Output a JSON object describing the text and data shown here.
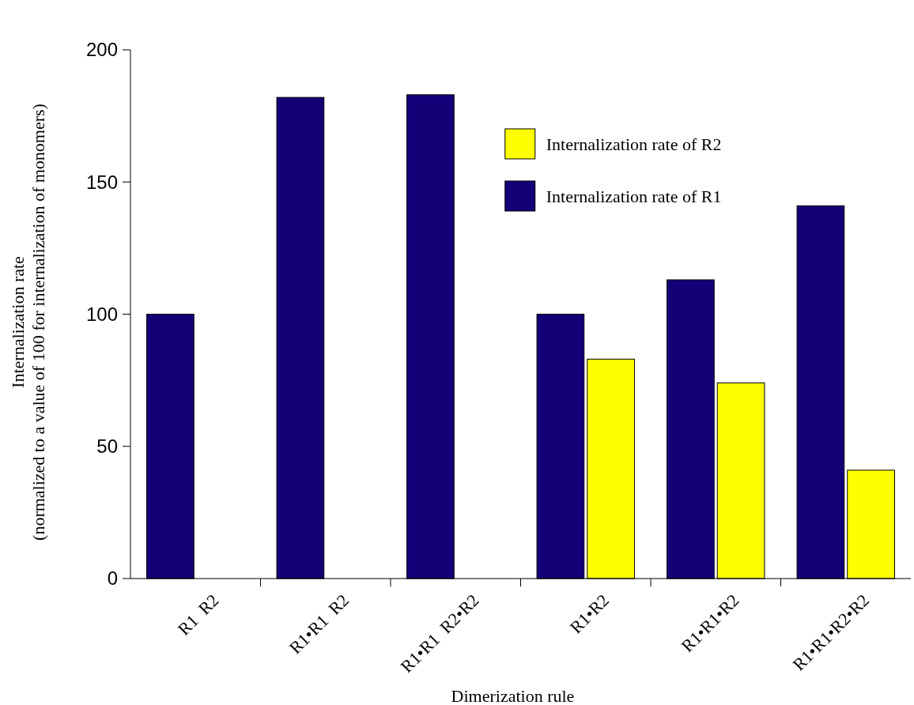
{
  "chart_data": {
    "type": "bar",
    "xlabel": "Dimerization rule",
    "ylabel": "Internalization rate\n(normalized to a value of 100 for internalization of monomers)",
    "categories": [
      "R1  R2",
      "R1•R1  R2",
      "R1•R1  R2•R2",
      "R1•R2",
      "R1•R1•R2",
      "R1•R1•R2•R2"
    ],
    "series": [
      {
        "name": "Internalization rate of R1",
        "color": "#130077",
        "values": [
          100,
          182,
          183,
          100,
          113,
          141
        ]
      },
      {
        "name": "Internalization rate of R2",
        "color": "#ffff00",
        "values": [
          null,
          null,
          null,
          83,
          74,
          41
        ]
      }
    ],
    "ylim": [
      0,
      200
    ],
    "yticks": [
      0,
      50,
      100,
      150,
      200
    ],
    "grid": false,
    "legend": "top right"
  }
}
